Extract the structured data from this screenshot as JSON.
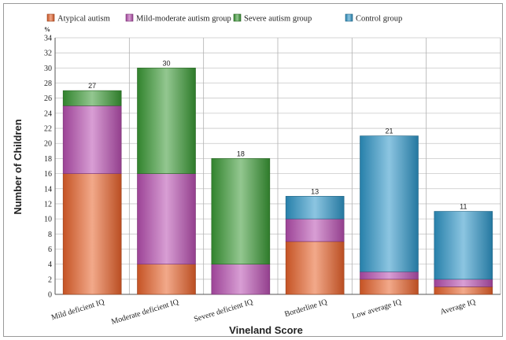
{
  "chart_data": {
    "type": "bar",
    "stacked": true,
    "ylabel": "Number of Children",
    "xlabel": "Vineland Score",
    "y_unit_label": "%",
    "ylim": [
      0,
      34
    ],
    "ytick_step": 2,
    "grid": true,
    "legend_position": "top",
    "categories": [
      "Mild deficient IQ",
      "Moderate deficient IQ",
      "Severe deficient IQ",
      "Borderline IQ",
      "Low average IQ",
      "Average IQ"
    ],
    "series": [
      {
        "name": "Atypical autism",
        "color": "#e8622a",
        "values": [
          16,
          4,
          0,
          7,
          2,
          1
        ]
      },
      {
        "name": "Mild-moderate autism group",
        "color": "#b84fb0",
        "values": [
          9,
          12,
          4,
          3,
          1,
          1
        ]
      },
      {
        "name": "Severe autism group",
        "color": "#3a9a35",
        "values": [
          2,
          14,
          14,
          0,
          0,
          0
        ]
      },
      {
        "name": "Control group",
        "color": "#2e96c8",
        "values": [
          0,
          0,
          0,
          3,
          18,
          9
        ]
      }
    ],
    "totals": [
      27,
      30,
      18,
      13,
      21,
      11
    ]
  }
}
